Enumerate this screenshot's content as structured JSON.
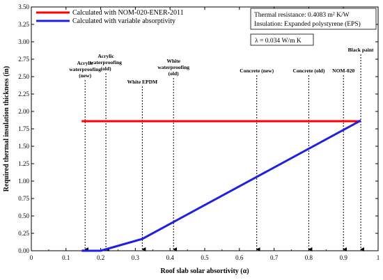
{
  "chart_data": {
    "type": "line",
    "xlabel": "Roof slab solar absortivity (α)",
    "ylabel": "Required thermal insulation thickness (in)",
    "xlim": [
      0,
      1
    ],
    "ylim": [
      0,
      3.5
    ],
    "x_ticks": [
      "0",
      "0.1",
      "0.2",
      "0.3",
      "0.4",
      "0.5",
      "0.6",
      "0.7",
      "0.8",
      "0.9",
      "1"
    ],
    "y_ticks": [
      "0.00",
      "0.25",
      "0.50",
      "0.75",
      "1.00",
      "1.25",
      "1.50",
      "1.75",
      "2.00",
      "2.25",
      "2.50",
      "2.75",
      "3.00",
      "3.25",
      "3.50"
    ],
    "legend_position": "top-left",
    "series": [
      {
        "name": "Calculated with NOM-020-ENER-2011",
        "color": "#ff0000",
        "x": [
          0.145,
          0.95
        ],
        "y": [
          1.86,
          1.86
        ]
      },
      {
        "name": "Calculated with variable absorptivity",
        "color": "#2020e0",
        "x": [
          0.145,
          0.2,
          0.32,
          0.95
        ],
        "y": [
          0.0,
          0.0,
          0.17,
          1.87
        ]
      }
    ],
    "info_box": {
      "line1": "Thermal resistance: 0.4083 m² K/W",
      "line2": "Insulation:  Expanded polystyrene (EPS)"
    },
    "lambda_box": "λ = 0.034  W/m K",
    "annotations": [
      {
        "x": 0.155,
        "lines": [
          "Acrylic",
          "waterproofing",
          "(new)"
        ]
      },
      {
        "x": 0.215,
        "lines": [
          "Acrylic",
          "waterproofing",
          "(old)"
        ]
      },
      {
        "x": 0.32,
        "lines": [
          "White EPDM"
        ]
      },
      {
        "x": 0.41,
        "lines": [
          "White",
          "waterproofing",
          "(old)"
        ]
      },
      {
        "x": 0.65,
        "lines": [
          "Concrete (new)"
        ]
      },
      {
        "x": 0.8,
        "lines": [
          "Concrete (old)"
        ]
      },
      {
        "x": 0.9,
        "lines": [
          "NOM-020"
        ]
      },
      {
        "x": 0.95,
        "lines": [
          "Black paint"
        ]
      }
    ]
  }
}
